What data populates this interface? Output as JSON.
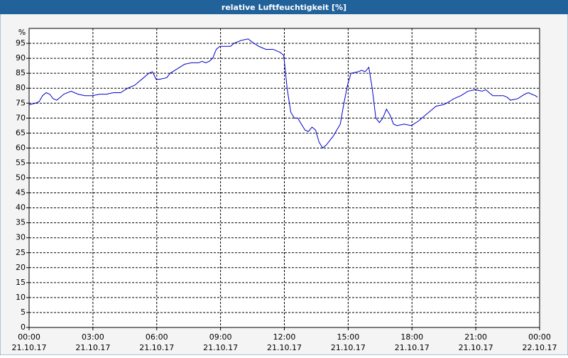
{
  "chart_data": {
    "type": "line",
    "title": "relative Luftfeuchtigkeit [%]",
    "ylabel": "%",
    "x": [
      0,
      0.3,
      0.47,
      0.63,
      0.8,
      0.97,
      1.13,
      1.3,
      1.47,
      1.63,
      1.97,
      2.3,
      2.63,
      2.97,
      3.3,
      3.63,
      3.97,
      4.3,
      4.63,
      4.97,
      5.13,
      5.3,
      5.63,
      5.8,
      5.97,
      6.13,
      6.47,
      6.63,
      6.97,
      7.3,
      7.63,
      7.97,
      8.13,
      8.3,
      8.47,
      8.63,
      8.8,
      8.97,
      9.3,
      9.47,
      9.63,
      9.97,
      10.3,
      10.47,
      10.8,
      11.13,
      11.47,
      11.8,
      11.97,
      12.13,
      12.3,
      12.47,
      12.63,
      12.8,
      12.97,
      13.13,
      13.3,
      13.47,
      13.63,
      13.8,
      13.97,
      14.3,
      14.63,
      14.8,
      14.97,
      15.13,
      15.47,
      15.63,
      15.8,
      15.97,
      16.13,
      16.3,
      16.47,
      16.63,
      16.8,
      16.97,
      17.13,
      17.3,
      17.63,
      17.97,
      18.3,
      18.63,
      18.97,
      19.13,
      19.47,
      19.63,
      19.97,
      20.3,
      20.63,
      20.97,
      21.3,
      21.47,
      21.63,
      21.8,
      21.97,
      22.3,
      22.47,
      22.63,
      22.97,
      23.3,
      23.47,
      23.63,
      23.8,
      23.9
    ],
    "values": [
      74.5,
      75,
      75.5,
      77.5,
      78.5,
      78,
      76.5,
      76,
      77,
      78,
      79,
      78,
      77.5,
      77.5,
      78,
      78,
      78.5,
      78.5,
      80,
      81,
      82,
      83,
      85,
      85.5,
      83,
      83,
      83.5,
      85,
      86.5,
      88,
      88.5,
      88.5,
      89,
      88.5,
      89,
      90,
      93,
      94,
      94,
      94,
      95,
      96,
      96.5,
      95.5,
      94,
      93,
      93,
      92,
      91,
      80,
      72,
      70,
      70,
      68,
      66,
      65.5,
      67,
      66,
      62,
      60,
      61,
      64,
      68,
      75,
      81,
      85,
      85.5,
      86,
      85.5,
      87,
      80,
      70,
      68.5,
      70,
      73,
      71,
      68,
      67.5,
      68,
      67.5,
      69,
      71,
      73,
      74,
      74.5,
      75,
      76.5,
      77.5,
      79,
      79.5,
      79,
      79.5,
      78.5,
      77.5,
      77.5,
      77.5,
      77,
      76,
      76.5,
      78,
      78.5,
      78,
      77.5,
      77
    ],
    "color": "#0000cc",
    "xlim": [
      0,
      24
    ],
    "xticks": [
      {
        "value": 0,
        "label": [
          "00:00",
          "21.10.17"
        ]
      },
      {
        "value": 3,
        "label": [
          "03:00",
          "21.10.17"
        ]
      },
      {
        "value": 6,
        "label": [
          "06:00",
          "21.10.17"
        ]
      },
      {
        "value": 9,
        "label": [
          "09:00",
          "21.10.17"
        ]
      },
      {
        "value": 12,
        "label": [
          "12:00",
          "21.10.17"
        ]
      },
      {
        "value": 15,
        "label": [
          "15:00",
          "21.10.17"
        ]
      },
      {
        "value": 18,
        "label": [
          "18:00",
          "21.10.17"
        ]
      },
      {
        "value": 21,
        "label": [
          "21:00",
          "21.10.17"
        ]
      },
      {
        "value": 24,
        "label": [
          "00:00",
          "22.10.17"
        ]
      }
    ],
    "ylim": [
      0,
      100
    ],
    "yticks": [
      0,
      5,
      10,
      15,
      20,
      25,
      30,
      35,
      40,
      45,
      50,
      55,
      60,
      65,
      70,
      75,
      80,
      85,
      90,
      95
    ],
    "grid": true
  }
}
